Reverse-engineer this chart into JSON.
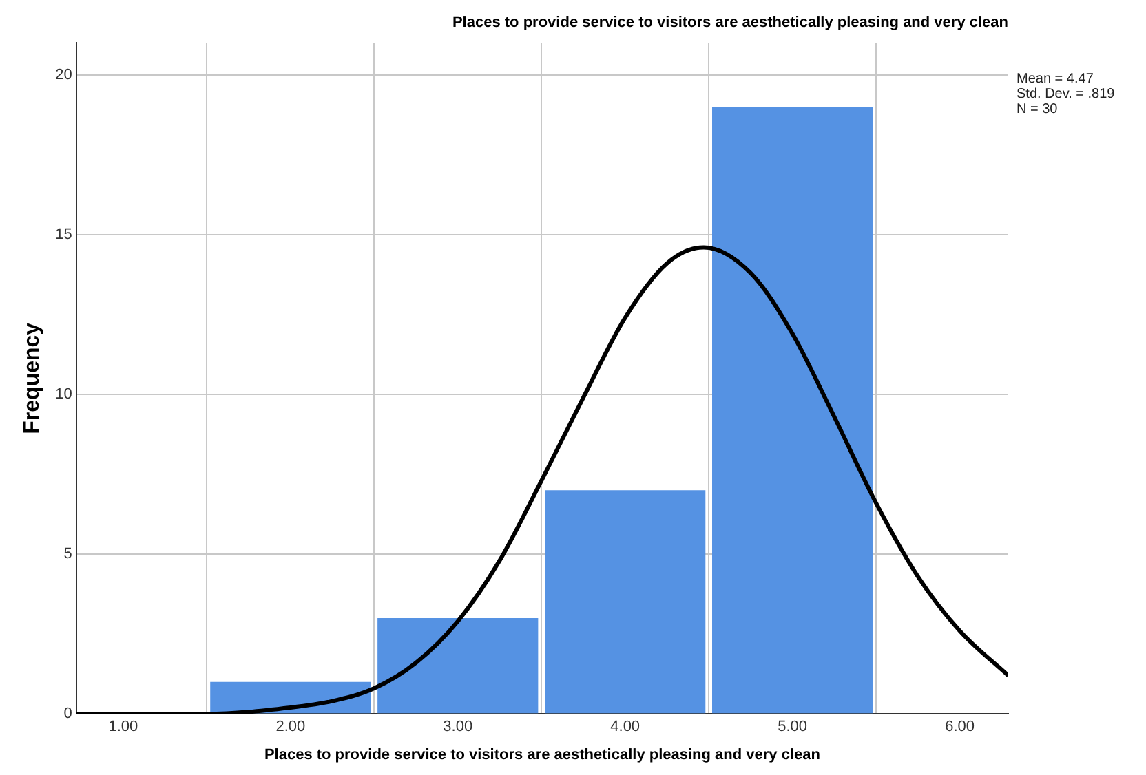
{
  "chart_data": {
    "type": "histogram",
    "title": "Places to provide service to visitors are aesthetically pleasing and very clean",
    "xlabel": "Places to provide service to visitors are aesthetically pleasing and very clean",
    "ylabel": "Frequency",
    "bins": [
      1.5,
      2.5,
      3.5,
      4.5,
      5.5
    ],
    "values": [
      1,
      3,
      7,
      19
    ],
    "color": "#5592e3",
    "series": [
      {
        "type": "line",
        "color": "#000000",
        "x": [
          0.72,
          1.0,
          1.5,
          2.0,
          2.25,
          2.5,
          2.75,
          3.0,
          3.25,
          3.5,
          3.75,
          4.0,
          4.25,
          4.47,
          4.75,
          5.0,
          5.25,
          5.5,
          5.75,
          6.0,
          6.29
        ],
        "values": [
          0,
          0,
          0,
          0.2,
          0.4,
          0.8,
          1.6,
          2.9,
          4.8,
          7.3,
          9.9,
          12.4,
          14.1,
          14.6,
          13.8,
          11.9,
          9.3,
          6.6,
          4.3,
          2.6,
          1.2
        ]
      }
    ],
    "xlim": [
      0.72,
      6.29
    ],
    "xticks": [
      {
        "value": 1,
        "label": "1.00"
      },
      {
        "value": 2,
        "label": "2.00"
      },
      {
        "value": 3,
        "label": "3.00"
      },
      {
        "value": 4,
        "label": "4.00"
      },
      {
        "value": 5,
        "label": "5.00"
      },
      {
        "value": 6,
        "label": "6.00"
      }
    ],
    "ylim": [
      0,
      21
    ],
    "yticks": [
      0,
      5,
      10,
      15,
      20
    ],
    "grid": true,
    "marker": "none",
    "line_style": "solid",
    "legend": false,
    "annotations": [
      "Mean = 4.47",
      "Std. Dev. = .819",
      "N = 30"
    ]
  }
}
